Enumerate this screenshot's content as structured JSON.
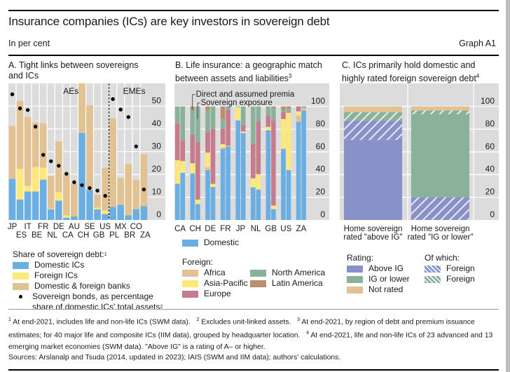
{
  "header": {
    "title": "Insurance companies (ICs) are key investors in sovereign debt",
    "unit": "In per cent",
    "graph_number": "Graph A1"
  },
  "colors": {
    "plot_bg": "#dcdcdc",
    "domestic": "#6aaee2",
    "foreign_ics": "#ffe877",
    "banks": "#e2c292",
    "africa": "#e2c292",
    "asia_pacific": "#ffe877",
    "europe": "#c77c8e",
    "north_america": "#8ab29b",
    "latin_america": "#bd8e6d",
    "above_ig": "#8891c8",
    "ig_or_lower": "#8ab29b",
    "not_rated": "#e2c292"
  },
  "chart_data": [
    {
      "id": "A",
      "type": "bar",
      "stacked": true,
      "title": "A. Tight links between sovereigns and ICs",
      "title_lines": [
        "A. Tight links between sovereigns",
        "and ICs"
      ],
      "categories": [
        "JP",
        "ES",
        "IT",
        "BE",
        "FR",
        "NL",
        "DE",
        "CA",
        "AU",
        "CH",
        "SE",
        "GB",
        "US",
        "PL",
        "MX",
        "BR",
        "CO",
        "ZA"
      ],
      "group_labels": [
        {
          "label": "AEs",
          "from": 0,
          "to": 12
        },
        {
          "label": "EMEs",
          "from": 13,
          "to": 17
        }
      ],
      "series": [
        {
          "name": "Domestic ICs",
          "key": "domestic",
          "values": [
            18,
            9,
            12.5,
            12.5,
            17.7,
            4.7,
            8.5,
            1,
            1.6,
            38.2,
            13.1,
            4.7,
            2.6,
            5.7,
            6.6,
            2,
            4.7,
            6
          ]
        },
        {
          "name": "Foreign ICs",
          "key": "foreign_ics",
          "values": [
            0,
            13.4,
            2.5,
            10.8,
            5.3,
            0.3,
            3.7,
            1,
            0,
            0,
            0,
            0.7,
            1.5,
            0,
            0,
            0,
            0,
            0
          ]
        },
        {
          "name": "Domestic & foreign banks",
          "key": "banks",
          "values": [
            23.3,
            30,
            30.3,
            19.5,
            19.5,
            14.3,
            22.3,
            18.2,
            14.6,
            24,
            37.2,
            5.6,
            18.9,
            39,
            11.8,
            22.6,
            13,
            22.9
          ]
        }
      ],
      "dots": {
        "name": "Sovereign bonds, as percentage share of domestic ICs' total assets",
        "values": [
          55.2,
          49,
          48.3,
          41,
          28.6,
          25.8,
          23.8,
          20.3,
          16.6,
          15.3,
          14,
          12.9,
          10.6,
          53.1,
          48.5,
          45.2,
          32.3,
          13.4
        ]
      },
      "ylim": [
        0,
        60
      ],
      "yticks": [
        0,
        10,
        20,
        30,
        40,
        50
      ],
      "ytick_labels": [
        "0",
        "10",
        "20",
        "30",
        "40",
        "50"
      ],
      "grid": true,
      "legend": {
        "title": "Share of sovereign debt:",
        "title_sup": "1",
        "items": [
          "Domestic ICs",
          "Foreign ICs",
          "Domestic & foreign banks"
        ],
        "dot_label_line1": "Sovereign bonds, as percentage",
        "dot_label_line2": "share of domestic ICs' total assets",
        "dot_label_sup": "2"
      }
    },
    {
      "id": "B",
      "type": "bar",
      "stacked": true,
      "title": "B. Life insurance: a geographic match between assets and liabilities",
      "title_lines": [
        "B. Life insurance: a geographic match",
        "between assets and liabilities"
      ],
      "title_sup": "3",
      "categories": [
        "CA",
        "CH",
        "DE",
        "FR",
        "JP",
        "NL",
        "GB",
        "US",
        "ZA"
      ],
      "pair_labels": [
        "Direct and assumed premia",
        "Sovereign exposure"
      ],
      "series_keys": [
        "domestic",
        "africa",
        "asia_pacific",
        "europe",
        "north_america",
        "latin_america"
      ],
      "series_names": [
        "Domestic",
        "Africa",
        "Asia-Pacific",
        "Europe",
        "North America",
        "Latin America"
      ],
      "bars": [
        {
          "country": "CA",
          "premia": [
            32,
            0,
            20.7,
            32.3,
            15,
            0
          ],
          "sovereign": [
            41.6,
            0,
            10.4,
            18,
            30,
            0
          ]
        },
        {
          "country": "CH",
          "premia": [
            41,
            0,
            9,
            25.4,
            21.6,
            3
          ],
          "sovereign": [
            14,
            0,
            4,
            50.6,
            31.4,
            0
          ]
        },
        {
          "country": "DE",
          "premia": [
            44,
            2.5,
            12.9,
            18.1,
            18.8,
            3.7
          ],
          "sovereign": [
            29,
            0,
            2.8,
            48.5,
            19.7,
            0
          ]
        },
        {
          "country": "FR",
          "premia": [
            62.7,
            1,
            3.1,
            13.5,
            8.7,
            11
          ],
          "sovereign": [
            64.8,
            0,
            0.6,
            31.6,
            3,
            0
          ]
        },
        {
          "country": "JP",
          "premia": [
            87.7,
            0,
            11.7,
            0,
            0.6,
            0
          ],
          "sovereign": [
            76.6,
            0,
            1.4,
            6,
            16,
            0
          ]
        },
        {
          "country": "NL",
          "premia": [
            28.7,
            0,
            8,
            30.1,
            33.2,
            0
          ],
          "sovereign": [
            26.8,
            0,
            13.6,
            46.6,
            13,
            0
          ]
        },
        {
          "country": "GB",
          "premia": [
            79,
            0,
            3,
            10,
            8,
            0
          ],
          "sovereign": [
            9.6,
            0,
            3.1,
            75,
            11.1,
            1.2
          ]
        },
        {
          "country": "US",
          "premia": [
            62.5,
            0.5,
            26,
            6,
            2,
            3
          ],
          "sovereign": [
            44,
            0,
            50.5,
            0.5,
            3,
            2
          ]
        },
        {
          "country": "ZA",
          "premia": [
            86.5,
            5.5,
            3.7,
            4.3,
            0,
            0
          ],
          "sovereign": [
            96.3,
            2.5,
            0,
            0,
            1.2,
            0
          ]
        }
      ],
      "ylim": [
        0,
        100
      ],
      "yticks": [
        0,
        20,
        40,
        60,
        80,
        100
      ],
      "ytick_labels": [
        "0",
        "20",
        "40",
        "60",
        "80",
        "100"
      ],
      "grid": true,
      "legend": {
        "domestic_label": "Domestic",
        "foreign_title": "Foreign:",
        "col1": [
          "Africa",
          "Asia-Pacific",
          "Europe"
        ],
        "col2": [
          "North America",
          "Latin America"
        ]
      }
    },
    {
      "id": "C",
      "type": "bar",
      "stacked": true,
      "title": "C. ICs primarily hold domestic and highly rated foreign sovereign debt",
      "title_lines": [
        "C. ICs primarily hold domestic and",
        "highly rated foreign sovereign debt"
      ],
      "title_sup": "4",
      "categories": [
        "Home sovereign rated \"above IG\"",
        "Home sovereign rated \"IG or lower\""
      ],
      "category_lines": [
        [
          "Home sovereign",
          "rated \"above IG\""
        ],
        [
          "Home sovereign",
          "rated \"IG or lower\""
        ]
      ],
      "series": [
        {
          "name": "Above IG (domestic)",
          "key": "above_ig",
          "hatched": false,
          "values": [
            70.5,
            0
          ]
        },
        {
          "name": "Above IG (foreign)",
          "key": "above_ig",
          "hatched": true,
          "values": [
            16.9,
            20
          ]
        },
        {
          "name": "IG or lower (domestic)",
          "key": "ig_or_lower",
          "hatched": false,
          "values": [
            0,
            73.2
          ]
        },
        {
          "name": "IG or lower (foreign)",
          "key": "ig_or_lower",
          "hatched": true,
          "values": [
            7.6,
            3.3
          ]
        },
        {
          "name": "Not rated",
          "key": "not_rated",
          "hatched": false,
          "values": [
            5,
            3.5
          ]
        }
      ],
      "ylim": [
        0,
        100
      ],
      "yticks": [
        0,
        20,
        40,
        60,
        80,
        100
      ],
      "ytick_labels": [
        "0",
        "20",
        "40",
        "60",
        "80",
        "100"
      ],
      "grid": true,
      "legend": {
        "rating_title": "Rating:",
        "rating_items": [
          "Above IG",
          "IG or lower",
          "Not rated"
        ],
        "ofwhich_title": "Of which:",
        "ofwhich_items": [
          "Foreign",
          "Foreign"
        ]
      }
    }
  ],
  "footnotes": {
    "n1_num": "1",
    "n1": "At end-2021, includes life and non-life ICs (SWM data).",
    "n2_num": "2",
    "n2": "Excludes unit-linked assets.",
    "n3_num": "3",
    "n3": "At end-2021, by region of debt and premium issuance estimates; for 40 major life and composite ICs (IIM data), grouped by headquarter location.",
    "n4_num": "4",
    "n4": "At end-2021, life and non-life ICs of 23 advanced and 13 emerging market economies (SWM data). \"Above IG\" is a rating of A– or higher."
  },
  "sources": "Sources: Arslanalp and Tsuda (2014, updated in 2023); IAIS (SWM and IIM data); authors' calculations."
}
